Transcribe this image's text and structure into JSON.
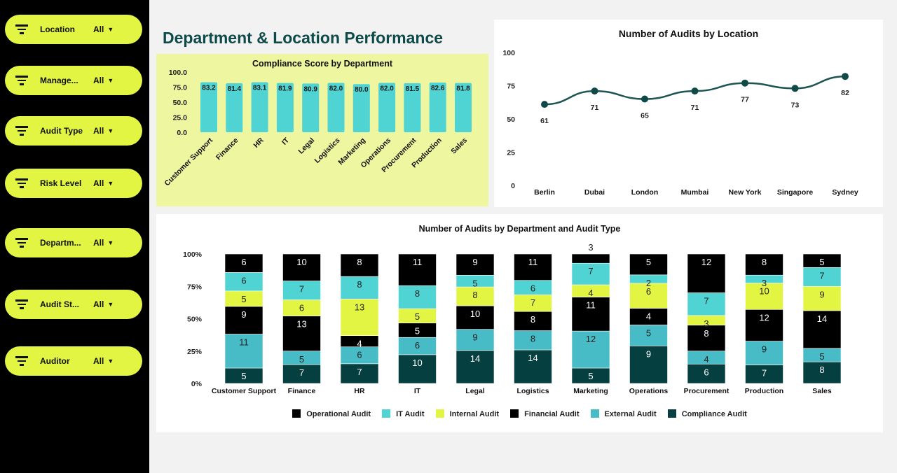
{
  "sidebar": {
    "filters": [
      {
        "label": "Location",
        "value": "All"
      },
      {
        "label": "Manage...",
        "value": "All"
      },
      {
        "label": "Audit Type",
        "value": "All"
      },
      {
        "label": "Risk Level",
        "value": "All"
      },
      {
        "label": "Departm...",
        "value": "All"
      },
      {
        "label": "Audit St...",
        "value": "All"
      },
      {
        "label": "Auditor",
        "value": "All"
      }
    ],
    "icon": "filter-icon"
  },
  "page_title": "Department & Location Performance",
  "colors": {
    "accent": "#e2f542",
    "teal_dark": "#063f3f",
    "teal": "#47bcc6",
    "cyan": "#4fd3d3",
    "yellow": "#e2f542",
    "black": "#000000"
  },
  "chart_data": [
    {
      "type": "bar",
      "title": "Compliance Score by Department",
      "categories": [
        "Customer Support",
        "Finance",
        "HR",
        "IT",
        "Legal",
        "Logistics",
        "Marketing",
        "Operations",
        "Procurement",
        "Production",
        "Sales"
      ],
      "values": [
        83.2,
        81.4,
        83.1,
        81.9,
        80.9,
        82.0,
        80.0,
        82.0,
        81.5,
        82.6,
        81.8
      ],
      "ylim": [
        0,
        100
      ],
      "yticks": [
        "0.0",
        "25.0",
        "50.0",
        "75.0",
        "100.0"
      ],
      "grid": false,
      "color": "#4fd3d3"
    },
    {
      "type": "line",
      "title": "Number of Audits by Location",
      "categories": [
        "Berlin",
        "Dubai",
        "London",
        "Mumbai",
        "New York",
        "Singapore",
        "Sydney"
      ],
      "values": [
        61,
        71,
        65,
        71,
        77,
        73,
        82
      ],
      "ylim": [
        0,
        100
      ],
      "yticks": [
        "0",
        "25",
        "50",
        "75",
        "100"
      ],
      "grid": false,
      "color": "#1d5552"
    },
    {
      "type": "bar",
      "stacked": "percent",
      "title": "Number of Audits by Department and Audit Type",
      "categories": [
        "Customer Support",
        "Finance",
        "HR",
        "IT",
        "Legal",
        "Logistics",
        "Marketing",
        "Operations",
        "Procurement",
        "Production",
        "Sales"
      ],
      "yticks": [
        "0%",
        "25%",
        "50%",
        "75%",
        "100%"
      ],
      "legend": "bottom",
      "series": [
        {
          "name": "Compliance Audit",
          "color": "#063f3f",
          "values": [
            5,
            7,
            7,
            10,
            14,
            14,
            5,
            9,
            6,
            7,
            8
          ]
        },
        {
          "name": "External Audit",
          "color": "#47bcc6",
          "values": [
            11,
            5,
            6,
            6,
            9,
            8,
            12,
            5,
            4,
            9,
            5
          ]
        },
        {
          "name": "Financial Audit",
          "color": "#000000",
          "values": [
            9,
            13,
            4,
            5,
            10,
            8,
            11,
            4,
            8,
            12,
            14
          ]
        },
        {
          "name": "Internal Audit",
          "color": "#e2f542",
          "values": [
            5,
            6,
            13,
            5,
            8,
            7,
            4,
            6,
            3,
            10,
            9
          ]
        },
        {
          "name": "IT Audit",
          "color": "#4fd3d3",
          "values": [
            6,
            7,
            8,
            8,
            5,
            6,
            7,
            2,
            7,
            3,
            7
          ]
        },
        {
          "name": "Operational Audit",
          "color": "#000000",
          "values": [
            6,
            10,
            8,
            11,
            9,
            11,
            3,
            5,
            12,
            8,
            5
          ]
        }
      ],
      "legend_order": [
        "Operational Audit",
        "IT Audit",
        "Internal Audit",
        "Financial Audit",
        "External Audit",
        "Compliance Audit"
      ]
    }
  ]
}
